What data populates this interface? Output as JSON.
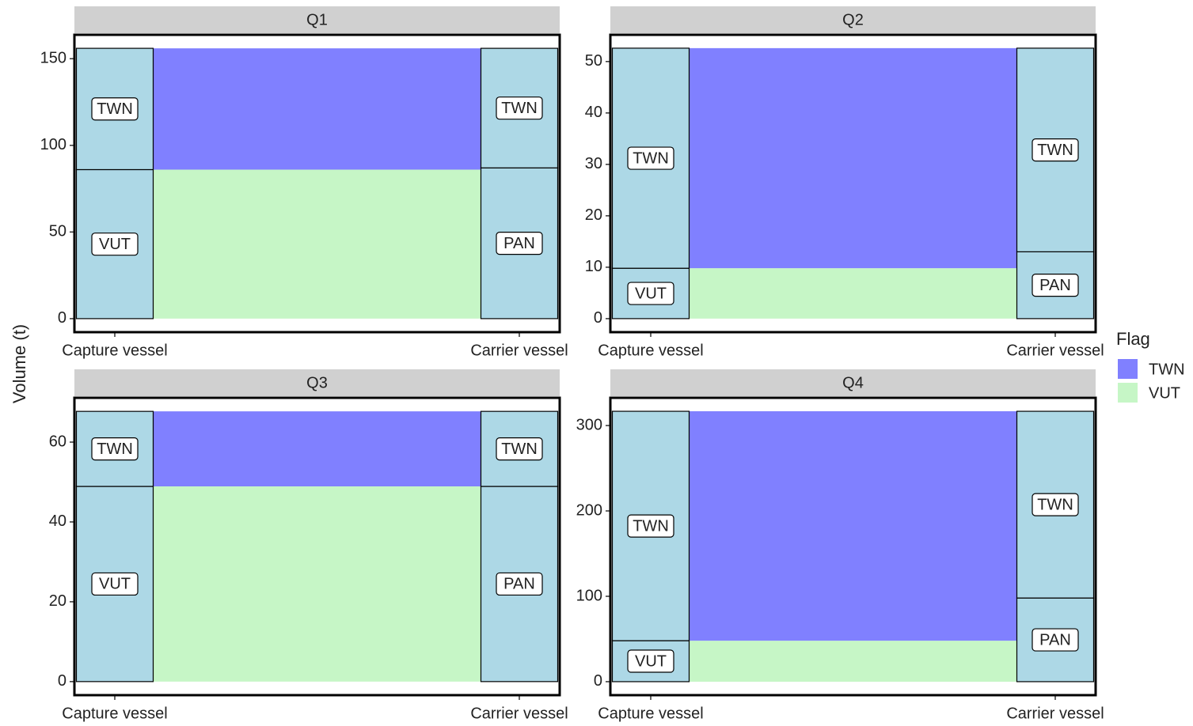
{
  "chart_data": [
    {
      "type": "alluvial",
      "title": "Q1",
      "categories": [
        "Capture vessel",
        "Carrier vessel"
      ],
      "strata": [
        [
          {
            "name": "VUT",
            "value": 86
          },
          {
            "name": "TWN",
            "value": 70
          }
        ],
        [
          {
            "name": "PAN",
            "value": 87
          },
          {
            "name": "TWN",
            "value": 69
          }
        ]
      ],
      "flows": [
        70,
        86
      ],
      "ylim": [
        -7.8,
        163.8
      ],
      "yticks": [
        0,
        50,
        100,
        150
      ]
    },
    {
      "type": "alluvial",
      "title": "Q2",
      "categories": [
        "Capture vessel",
        "Carrier vessel"
      ],
      "strata": [
        [
          {
            "name": "VUT",
            "value": 9.8
          },
          {
            "name": "TWN",
            "value": 42.8
          }
        ],
        [
          {
            "name": "PAN",
            "value": 13
          },
          {
            "name": "TWN",
            "value": 39.6
          }
        ]
      ],
      "flows": [
        42.8,
        9.8
      ],
      "ylim": [
        -2.63,
        55.2
      ],
      "yticks": [
        0,
        10,
        20,
        30,
        40,
        50
      ]
    },
    {
      "type": "alluvial",
      "title": "Q3",
      "categories": [
        "Capture vessel",
        "Carrier vessel"
      ],
      "strata": [
        [
          {
            "name": "VUT",
            "value": 48.9
          },
          {
            "name": "TWN",
            "value": 18.8
          }
        ],
        [
          {
            "name": "PAN",
            "value": 48.9
          },
          {
            "name": "TWN",
            "value": 18.8
          }
        ]
      ],
      "flows": [
        18.8,
        48.9
      ],
      "ylim": [
        -3.4,
        71.1
      ],
      "yticks": [
        0,
        20,
        40,
        60
      ]
    },
    {
      "type": "alluvial",
      "title": "Q4",
      "categories": [
        "Capture vessel",
        "Carrier vessel"
      ],
      "strata": [
        [
          {
            "name": "VUT",
            "value": 48
          },
          {
            "name": "TWN",
            "value": 268.7
          }
        ],
        [
          {
            "name": "PAN",
            "value": 98
          },
          {
            "name": "TWN",
            "value": 218.7
          }
        ]
      ],
      "flows": [
        268.7,
        48
      ],
      "ylim": [
        -15.8,
        332.5
      ],
      "yticks": [
        0,
        100,
        200,
        300
      ]
    }
  ],
  "y_label": "Volume (t)",
  "legend": {
    "title": "Flag",
    "series": [
      {
        "name": "TWN",
        "color": "#8080ff"
      },
      {
        "name": "VUT",
        "color": "#c6f6c6"
      }
    ]
  },
  "stratum_color": "#add8e6"
}
